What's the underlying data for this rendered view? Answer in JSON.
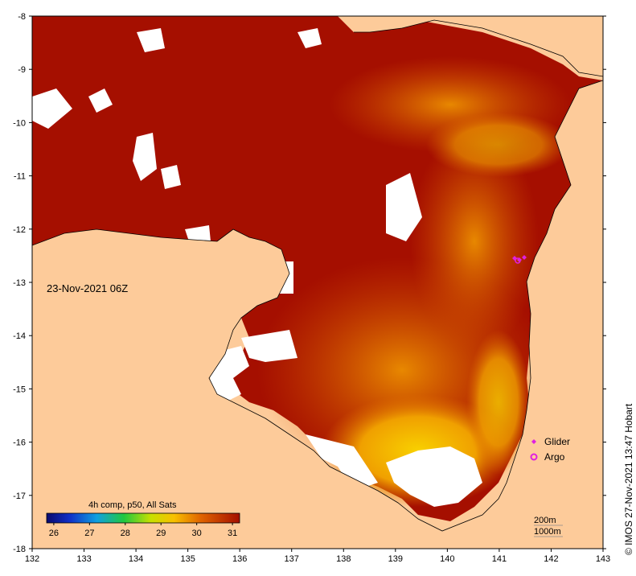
{
  "map": {
    "timestamp": "23-Nov-2021 06Z",
    "credit": "© IMOS 27-Nov-2021 13:47 Hobart",
    "x_ticks": [
      "132",
      "133",
      "134",
      "135",
      "136",
      "137",
      "138",
      "139",
      "140",
      "141",
      "142",
      "143"
    ],
    "y_ticks": [
      "-8",
      "-9",
      "-10",
      "-11",
      "-12",
      "-13",
      "-14",
      "-15",
      "-16",
      "-17",
      "-18"
    ],
    "x_range": [
      132,
      143
    ],
    "y_range": [
      -8,
      -18
    ]
  },
  "legend": {
    "items": [
      {
        "label": "Glider",
        "color": "#e020e0",
        "icon": "diamond-icon"
      },
      {
        "label": "Argo",
        "color": "#e020e0",
        "icon": "ring-icon"
      }
    ]
  },
  "colorbar": {
    "title": "4h comp, p50, All Sats",
    "ticks": [
      "26",
      "27",
      "28",
      "29",
      "30",
      "31"
    ],
    "tick_values": [
      26,
      27,
      28,
      29,
      30,
      31
    ],
    "range": [
      25.8,
      31.2
    ]
  },
  "depth_legend": {
    "contour_1": "200m",
    "contour_2": "1000m"
  },
  "colors": {
    "land": "#fdcb9a",
    "sst_high": "#a50f00",
    "sst_mid": "#e06400",
    "sst_low": "#f8c000",
    "no_data": "#ffffff"
  }
}
